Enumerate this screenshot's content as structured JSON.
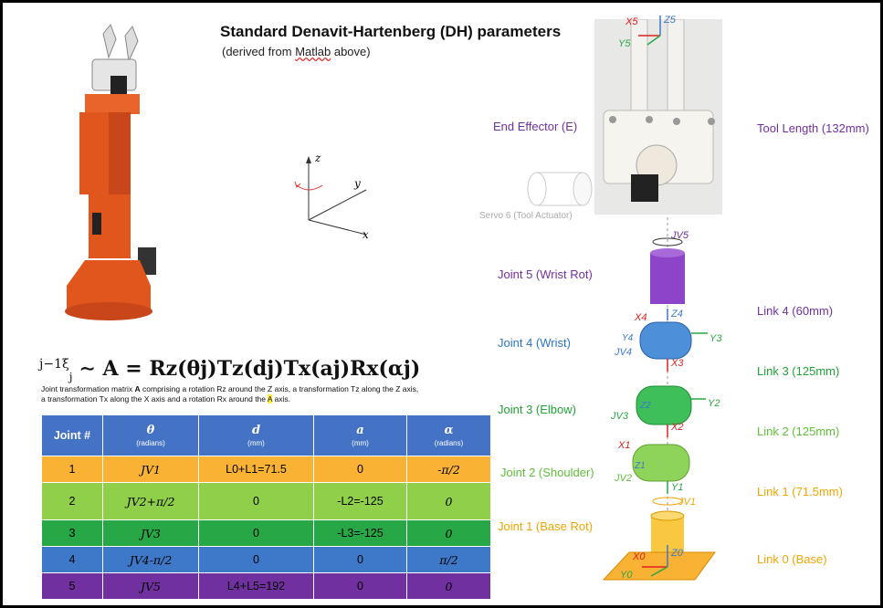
{
  "title": "Standard Denavit-Hartenberg (DH) parameters",
  "subtitle_pre": "(derived from ",
  "subtitle_link": "Matlab",
  "subtitle_post": " above)",
  "formula": {
    "lhs": "j−1ξ",
    "lhs_sub": "j",
    "rhs": "∼ A = Rz(θj)Tz(dj)Tx(aj)Rx(αj)"
  },
  "caption": {
    "part1": "Joint transformation matrix ",
    "bold_a": "A",
    "part2": " comprising a rotation Rz around the Z axis, a transformation Tz along the Z axis, a transformation Tx along the X axis and a rotation Rx around the ",
    "highlight": "A",
    "part3": " axis."
  },
  "table": {
    "headers": [
      {
        "label": "Joint #",
        "unit": ""
      },
      {
        "label": "θ",
        "unit": "(radians)"
      },
      {
        "label": "d",
        "unit": "(mm)"
      },
      {
        "label": "a",
        "unit": "(mm)"
      },
      {
        "label": "α",
        "unit": "(radians)"
      }
    ],
    "rows": [
      {
        "joint": "1",
        "theta": "JV1",
        "d": "L0+L1=71.5",
        "a": "0",
        "alpha": "-π/2"
      },
      {
        "joint": "2",
        "theta": "JV2+π/2",
        "d": "0",
        "a": "-L2=-125",
        "alpha": "0"
      },
      {
        "joint": "3",
        "theta": "JV3",
        "d": "0",
        "a": "-L3=-125",
        "alpha": "0"
      },
      {
        "joint": "4",
        "theta": "JV4-π/2",
        "d": "0",
        "a": "0",
        "alpha": "π/2"
      },
      {
        "joint": "5",
        "theta": "JV5",
        "d": "L4+L5=192",
        "a": "0",
        "alpha": "0"
      }
    ]
  },
  "axes_icon": {
    "z": "z",
    "y": "y",
    "x": "x"
  },
  "left_labels": {
    "end_effector": "End Effector (E)",
    "servo6": "Servo 6 (Tool Actuator)",
    "joint5": "Joint 5 (Wrist Rot)",
    "joint4": "Joint 4 (Wrist)",
    "joint3": "Joint 3 (Elbow)",
    "joint2": "Joint 2 (Shoulder)",
    "joint1": "Joint 1 (Base Rot)"
  },
  "right_labels": {
    "tool_length": "Tool Length (132mm)",
    "link4": "Link 4 (60mm)",
    "link3": "Link 3 (125mm)",
    "link2": "Link 2 (125mm)",
    "link1": "Link 1 (71.5mm)",
    "link0": "Link 0 (Base)"
  },
  "frame_labels": {
    "x5": "X5",
    "z5": "Z5",
    "y5": "Y5",
    "jv5": "JV5",
    "x4": "X4",
    "z4": "Z4",
    "y4": "Y4",
    "jv4": "JV4",
    "y3": "Y3",
    "x3": "X3",
    "z2": "Z2",
    "y2": "Y2",
    "jv3": "JV3",
    "x2": "X2",
    "x1": "X1",
    "z1": "Z1",
    "jv2": "JV2",
    "y1": "Y1",
    "jv1": "JV1",
    "x0": "X0",
    "z0": "Z0",
    "y0": "Y0"
  },
  "colors": {
    "purple": "#7030a0",
    "blue": "#3e78c8",
    "green": "#27a745",
    "light_green": "#8fcf4a",
    "orange": "#f9b233",
    "red": "#e02020"
  }
}
